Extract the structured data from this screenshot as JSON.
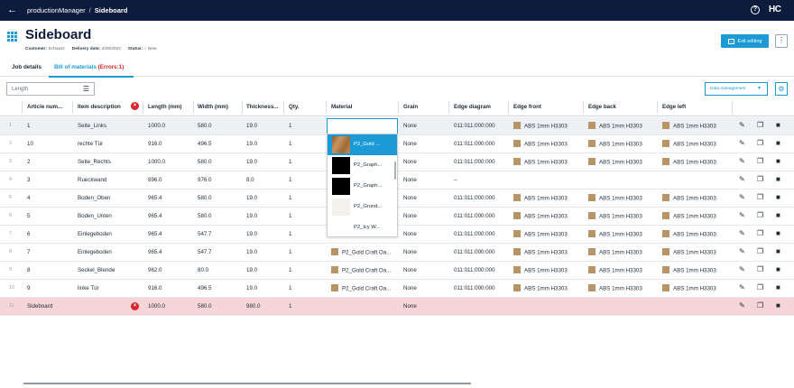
{
  "topbar": {
    "back_icon": "arrow-left-icon",
    "breadcrumb_app": "productionManager",
    "breadcrumb_sep": "/",
    "breadcrumb_page": "Sideboard",
    "help_icon": "?",
    "logo_text": "HC"
  },
  "header": {
    "title": "Sideboard",
    "customer_label": "Customer:",
    "customer_value": "Schwarz",
    "delivery_label": "Delivery date:",
    "delivery_value": "4/29/2022",
    "status_label": "Status:",
    "status_value": "New",
    "exit_label": "Exit editing",
    "more_label": "⋮"
  },
  "tabs": {
    "job_details": "Job details",
    "bom": "Bill of materials",
    "bom_errors": "(Errors:1)"
  },
  "toolbar": {
    "filter_value": "Length",
    "data_management": "Data management"
  },
  "table": {
    "headers": {
      "article": "Article num...",
      "item": "Item description",
      "length": "Length (mm)",
      "width": "Width (mm)",
      "thickness": "Thickness...",
      "qty": "Qty.",
      "material": "Material",
      "grain": "Grain",
      "edge_diagram": "Edge diagram",
      "edge_front": "Edge front",
      "edge_back": "Edge back",
      "edge_left": "Edge left"
    },
    "rows": [
      {
        "n": "1",
        "article": "1",
        "item": "Seite_Links",
        "length": "1000.0",
        "width": "580.0",
        "thickness": "19.0",
        "qty": "1",
        "material": "",
        "grain": "None",
        "edge_diagram": "011:011:000:000",
        "edge_front": "ABS 1mm H3303",
        "edge_back": "ABS 1mm H3303",
        "edge_left": "ABS 1mm H3303"
      },
      {
        "n": "2",
        "article": "10",
        "item": "rechte Tür",
        "length": "916.0",
        "width": "496.5",
        "thickness": "19.0",
        "qty": "1",
        "material": "",
        "grain": "None",
        "edge_diagram": "011:011:000:000",
        "edge_front": "ABS 1mm H3303",
        "edge_back": "ABS 1mm H3303",
        "edge_left": "ABS 1mm H3303"
      },
      {
        "n": "3",
        "article": "2",
        "item": "Seite_Rechts",
        "length": "1000.0",
        "width": "580.0",
        "thickness": "19.0",
        "qty": "1",
        "material": "",
        "grain": "None",
        "edge_diagram": "011:011:000:000",
        "edge_front": "ABS 1mm H3303",
        "edge_back": "ABS 1mm H3303",
        "edge_left": "ABS 1mm H3303"
      },
      {
        "n": "4",
        "article": "3",
        "item": "Rueckwand",
        "length": "896.0",
        "width": "976.0",
        "thickness": "8.0",
        "qty": "1",
        "material": "",
        "grain": "None",
        "edge_diagram": "--",
        "edge_front": "",
        "edge_back": "",
        "edge_left": ""
      },
      {
        "n": "5",
        "article": "4",
        "item": "Boden_Oben",
        "length": "965.4",
        "width": "580.0",
        "thickness": "19.0",
        "qty": "1",
        "material": "",
        "grain": "None",
        "edge_diagram": "011:011:000:000",
        "edge_front": "ABS 1mm H3303",
        "edge_back": "ABS 1mm H3303",
        "edge_left": "ABS 1mm H3303"
      },
      {
        "n": "6",
        "article": "5",
        "item": "Boden_Unten",
        "length": "965.4",
        "width": "580.0",
        "thickness": "19.0",
        "qty": "1",
        "material": "",
        "grain": "None",
        "edge_diagram": "011:011:000:000",
        "edge_front": "ABS 1mm H3303",
        "edge_back": "ABS 1mm H3303",
        "edge_left": "ABS 1mm H3303"
      },
      {
        "n": "7",
        "article": "6",
        "item": "Einlegeboden",
        "length": "965.4",
        "width": "547.7",
        "thickness": "19.0",
        "qty": "1",
        "material": "",
        "grain": "None",
        "edge_diagram": "011:011:000:000",
        "edge_front": "ABS 1mm H3303",
        "edge_back": "ABS 1mm H3303",
        "edge_left": "ABS 1mm H3303"
      },
      {
        "n": "8",
        "article": "7",
        "item": "Einlegeboden",
        "length": "965.4",
        "width": "547.7",
        "thickness": "19.0",
        "qty": "1",
        "material": "P2_Gold Craft Oa...",
        "grain": "None",
        "edge_diagram": "011:011:000:000",
        "edge_front": "ABS 1mm H3303",
        "edge_back": "ABS 1mm H3303",
        "edge_left": "ABS 1mm H3303"
      },
      {
        "n": "9",
        "article": "8",
        "item": "Seckel_Blende",
        "length": "962.0",
        "width": "80.0",
        "thickness": "19.0",
        "qty": "1",
        "material": "P2_Gold Craft Oa...",
        "grain": "None",
        "edge_diagram": "011:011:000:000",
        "edge_front": "ABS 1mm H3303",
        "edge_back": "ABS 1mm H3303",
        "edge_left": "ABS 1mm H3303"
      },
      {
        "n": "10",
        "article": "9",
        "item": "linke Tür",
        "length": "916.0",
        "width": "496.5",
        "thickness": "19.0",
        "qty": "1",
        "material": "P2_Gold Craft Oa...",
        "grain": "None",
        "edge_diagram": "011:011:000:000",
        "edge_front": "ABS 1mm H3303",
        "edge_back": "ABS 1mm H3303",
        "edge_left": "ABS 1mm H3303"
      },
      {
        "n": "11",
        "article": "Sideboard",
        "item": "",
        "length": "1000.0",
        "width": "580.0",
        "thickness": "980.0",
        "qty": "1",
        "material": "",
        "grain": "None",
        "edge_diagram": "",
        "edge_front": "",
        "edge_back": "",
        "edge_left": ""
      }
    ]
  },
  "dropdown": {
    "items": [
      {
        "label": "P2_Gold ...",
        "thumb": "#a0703f"
      },
      {
        "label": "P2_Graph...",
        "thumb": "#000000"
      },
      {
        "label": "P2_Graph...",
        "thumb": "#000000"
      },
      {
        "label": "P2_Grund...",
        "thumb": "#f4f1ec"
      },
      {
        "label": "P2_Icy W...",
        "thumb": "#ffffff"
      }
    ]
  },
  "colors": {
    "accent": "#1b9ad6",
    "topbar": "#0d1c3c",
    "error": "#d9262c",
    "error_row": "#f6d5d9",
    "swatch": "#b89566"
  }
}
